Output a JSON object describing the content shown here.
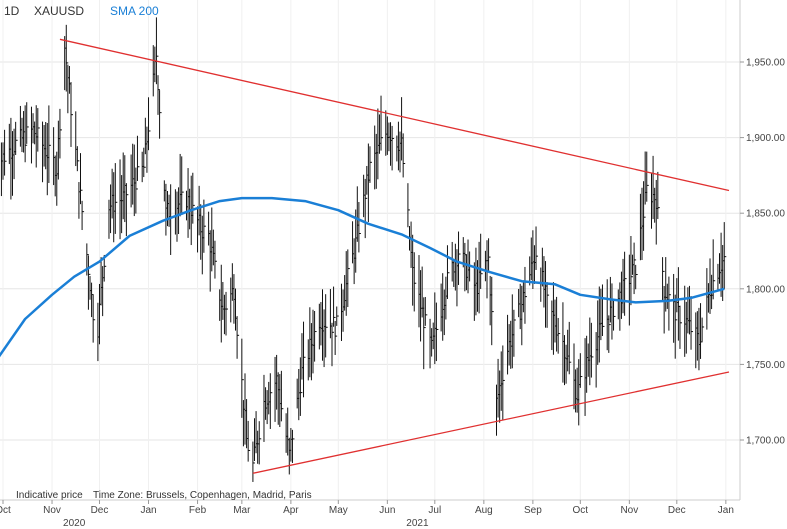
{
  "header": {
    "interval": "1D",
    "symbol": "XAUUSD",
    "indicator": "SMA 200"
  },
  "footer": {
    "price_note": "Indicative price",
    "timezone": "Time Zone: Brussels, Copenhagen, Madrid, Paris"
  },
  "colors": {
    "price_bars": "#111111",
    "sma": "#1a7fd6",
    "trendlines": "#e03030",
    "grid": "#e6e6e6"
  },
  "chart_data": {
    "type": "ohlc",
    "symbol": "XAUUSD",
    "interval": "1D",
    "ylim": [
      1660,
      1990
    ],
    "xlim": [
      "2020-10-01",
      "2022-01-03"
    ],
    "y_ticks": [
      {
        "value": 1700,
        "label": "1,700.00"
      },
      {
        "value": 1750,
        "label": "1,750.00"
      },
      {
        "value": 1800,
        "label": "1,800.00"
      },
      {
        "value": 1850,
        "label": "1,850.00"
      },
      {
        "value": 1900,
        "label": "1,900.00"
      },
      {
        "value": 1950,
        "label": "1,950.00"
      }
    ],
    "x_ticks": [
      {
        "date": "2020-10-01",
        "label": "Oct"
      },
      {
        "date": "2020-11-01",
        "label": "Nov"
      },
      {
        "date": "2020-12-01",
        "label": "Dec"
      },
      {
        "date": "2021-01-01",
        "label": "Jan"
      },
      {
        "date": "2021-02-01",
        "label": "Feb"
      },
      {
        "date": "2021-03-01",
        "label": "Mar"
      },
      {
        "date": "2021-04-01",
        "label": "Apr"
      },
      {
        "date": "2021-05-01",
        "label": "May"
      },
      {
        "date": "2021-06-01",
        "label": "Jun"
      },
      {
        "date": "2021-07-01",
        "label": "Jul"
      },
      {
        "date": "2021-08-01",
        "label": "Aug"
      },
      {
        "date": "2021-09-01",
        "label": "Sep"
      },
      {
        "date": "2021-10-01",
        "label": "Oct"
      },
      {
        "date": "2021-11-01",
        "label": "Nov"
      },
      {
        "date": "2021-12-01",
        "label": "Dec"
      },
      {
        "date": "2022-01-01",
        "label": "Jan"
      }
    ],
    "year_labels": [
      {
        "date": "2020-11-15",
        "label": "2020"
      },
      {
        "date": "2021-06-20",
        "label": "2021"
      }
    ],
    "price_path": [
      [
        "2020-09-25",
        1880
      ],
      [
        "2020-10-08",
        1895
      ],
      [
        "2020-10-20",
        1905
      ],
      [
        "2020-11-04",
        1880
      ],
      [
        "2020-11-09",
        1960
      ],
      [
        "2020-11-18",
        1870
      ],
      [
        "2020-11-27",
        1785
      ],
      [
        "2020-11-30",
        1775
      ],
      [
        "2020-12-07",
        1855
      ],
      [
        "2020-12-16",
        1860
      ],
      [
        "2020-12-29",
        1880
      ],
      [
        "2021-01-06",
        1955
      ],
      [
        "2021-01-12",
        1850
      ],
      [
        "2021-01-25",
        1860
      ],
      [
        "2021-02-03",
        1840
      ],
      [
        "2021-02-08",
        1835
      ],
      [
        "2021-02-17",
        1785
      ],
      [
        "2021-02-24",
        1800
      ],
      [
        "2021-03-04",
        1700
      ],
      [
        "2021-03-08",
        1683
      ],
      [
        "2021-03-15",
        1725
      ],
      [
        "2021-03-23",
        1740
      ],
      [
        "2021-03-31",
        1690
      ],
      [
        "2021-04-08",
        1745
      ],
      [
        "2021-04-19",
        1780
      ],
      [
        "2021-04-30",
        1775
      ],
      [
        "2021-05-12",
        1830
      ],
      [
        "2021-05-21",
        1880
      ],
      [
        "2021-06-01",
        1905
      ],
      [
        "2021-06-10",
        1895
      ],
      [
        "2021-06-17",
        1810
      ],
      [
        "2021-06-24",
        1780
      ],
      [
        "2021-06-29",
        1760
      ],
      [
        "2021-07-09",
        1805
      ],
      [
        "2021-07-16",
        1825
      ],
      [
        "2021-07-27",
        1800
      ],
      [
        "2021-08-04",
        1820
      ],
      [
        "2021-08-09",
        1725
      ],
      [
        "2021-08-16",
        1760
      ],
      [
        "2021-08-25",
        1790
      ],
      [
        "2021-09-03",
        1825
      ],
      [
        "2021-09-10",
        1790
      ],
      [
        "2021-09-20",
        1765
      ],
      [
        "2021-09-29",
        1730
      ],
      [
        "2021-10-08",
        1760
      ],
      [
        "2021-10-15",
        1775
      ],
      [
        "2021-10-26",
        1795
      ],
      [
        "2021-11-05",
        1815
      ],
      [
        "2021-11-12",
        1865
      ],
      [
        "2021-11-18",
        1860
      ],
      [
        "2021-11-23",
        1800
      ],
      [
        "2021-11-30",
        1785
      ],
      [
        "2021-12-06",
        1780
      ],
      [
        "2021-12-15",
        1765
      ],
      [
        "2021-12-22",
        1800
      ],
      [
        "2021-12-28",
        1815
      ],
      [
        "2021-12-31",
        1820
      ]
    ],
    "sma_200": [
      [
        "2020-09-25",
        1750
      ],
      [
        "2020-10-15",
        1780
      ],
      [
        "2020-11-01",
        1796
      ],
      [
        "2020-11-15",
        1808
      ],
      [
        "2020-12-01",
        1818
      ],
      [
        "2020-12-20",
        1835
      ],
      [
        "2021-01-10",
        1845
      ],
      [
        "2021-01-28",
        1852
      ],
      [
        "2021-02-15",
        1858
      ],
      [
        "2021-03-01",
        1860
      ],
      [
        "2021-03-20",
        1860
      ],
      [
        "2021-04-10",
        1858
      ],
      [
        "2021-05-01",
        1852
      ],
      [
        "2021-05-20",
        1843
      ],
      [
        "2021-06-10",
        1836
      ],
      [
        "2021-06-28",
        1827
      ],
      [
        "2021-07-15",
        1818
      ],
      [
        "2021-08-05",
        1811
      ],
      [
        "2021-08-25",
        1805
      ],
      [
        "2021-09-15",
        1803
      ],
      [
        "2021-10-01",
        1796
      ],
      [
        "2021-10-20",
        1793
      ],
      [
        "2021-11-05",
        1791
      ],
      [
        "2021-11-25",
        1792
      ],
      [
        "2021-12-10",
        1794
      ],
      [
        "2021-12-31",
        1800
      ]
    ],
    "trendlines": [
      {
        "name": "upper",
        "points": [
          [
            "2020-11-06",
            1965
          ],
          [
            "2022-01-03",
            1865
          ]
        ]
      },
      {
        "name": "lower",
        "points": [
          [
            "2021-03-08",
            1678
          ],
          [
            "2022-01-03",
            1745
          ]
        ]
      }
    ]
  }
}
